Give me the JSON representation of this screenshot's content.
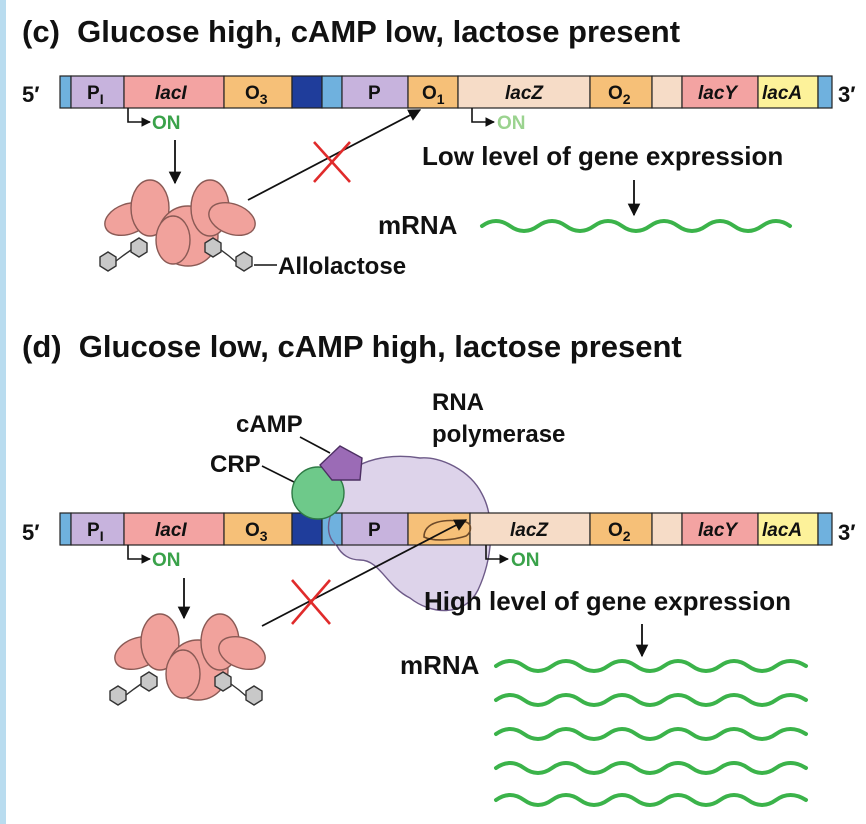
{
  "panel_c": {
    "title": "(c)  Glucose high, cAMP low, lactose present",
    "five_prime": "5′",
    "three_prime": "3′",
    "segments": {
      "pi": "P",
      "pi_sub": "I",
      "lacI": "lacI",
      "o3": "O",
      "o3_sub": "3",
      "p": "P",
      "o1": "O",
      "o1_sub": "1",
      "lacZ": "lacZ",
      "o2": "O",
      "o2_sub": "2",
      "lacY": "lacY",
      "lacA": "lacA"
    },
    "on_repressor": "ON",
    "on_lacz": "ON",
    "expression_label": "Low level of gene expression",
    "mrna_label": "mRNA",
    "allolactose_label": "Allolactose",
    "colors": {
      "on_repressor": "#3aa24a",
      "on_lacz": "#9bd38f"
    }
  },
  "panel_d": {
    "title": "(d)  Glucose low, cAMP high, lactose present",
    "five_prime": "5′",
    "three_prime": "3′",
    "segments": {
      "pi": "P",
      "pi_sub": "I",
      "lacI": "lacI",
      "o3": "O",
      "o3_sub": "3",
      "p": "P",
      "lacZ": "lacZ",
      "o2": "O",
      "o2_sub": "2",
      "lacY": "lacY",
      "lacA": "lacA"
    },
    "on_repressor": "ON",
    "on_lacz": "ON",
    "camp_label": "cAMP",
    "crp_label": "CRP",
    "rnap_label_line1": "RNA",
    "rnap_label_line2": "polymerase",
    "expression_label": "High level of gene expression",
    "mrna_label": "mRNA",
    "colors": {
      "on_repressor": "#3aa24a",
      "on_lacz": "#3aa24a"
    }
  },
  "colors": {
    "dna_end": "#6fb1de",
    "promoter": "#c7b3dd",
    "gene": "#f3a3a2",
    "operator": "#f6c078",
    "dark_site": "#1f3d9b",
    "lacz": "#f6dcc7",
    "laca": "#fdf29a",
    "mrna": "#3bb34a",
    "inhibit_x": "#e02b2b",
    "repressor": "#f1a29c",
    "crp": "#6ec98a",
    "camp": "#9b6bb6",
    "rnap": "#ddd3ea"
  }
}
